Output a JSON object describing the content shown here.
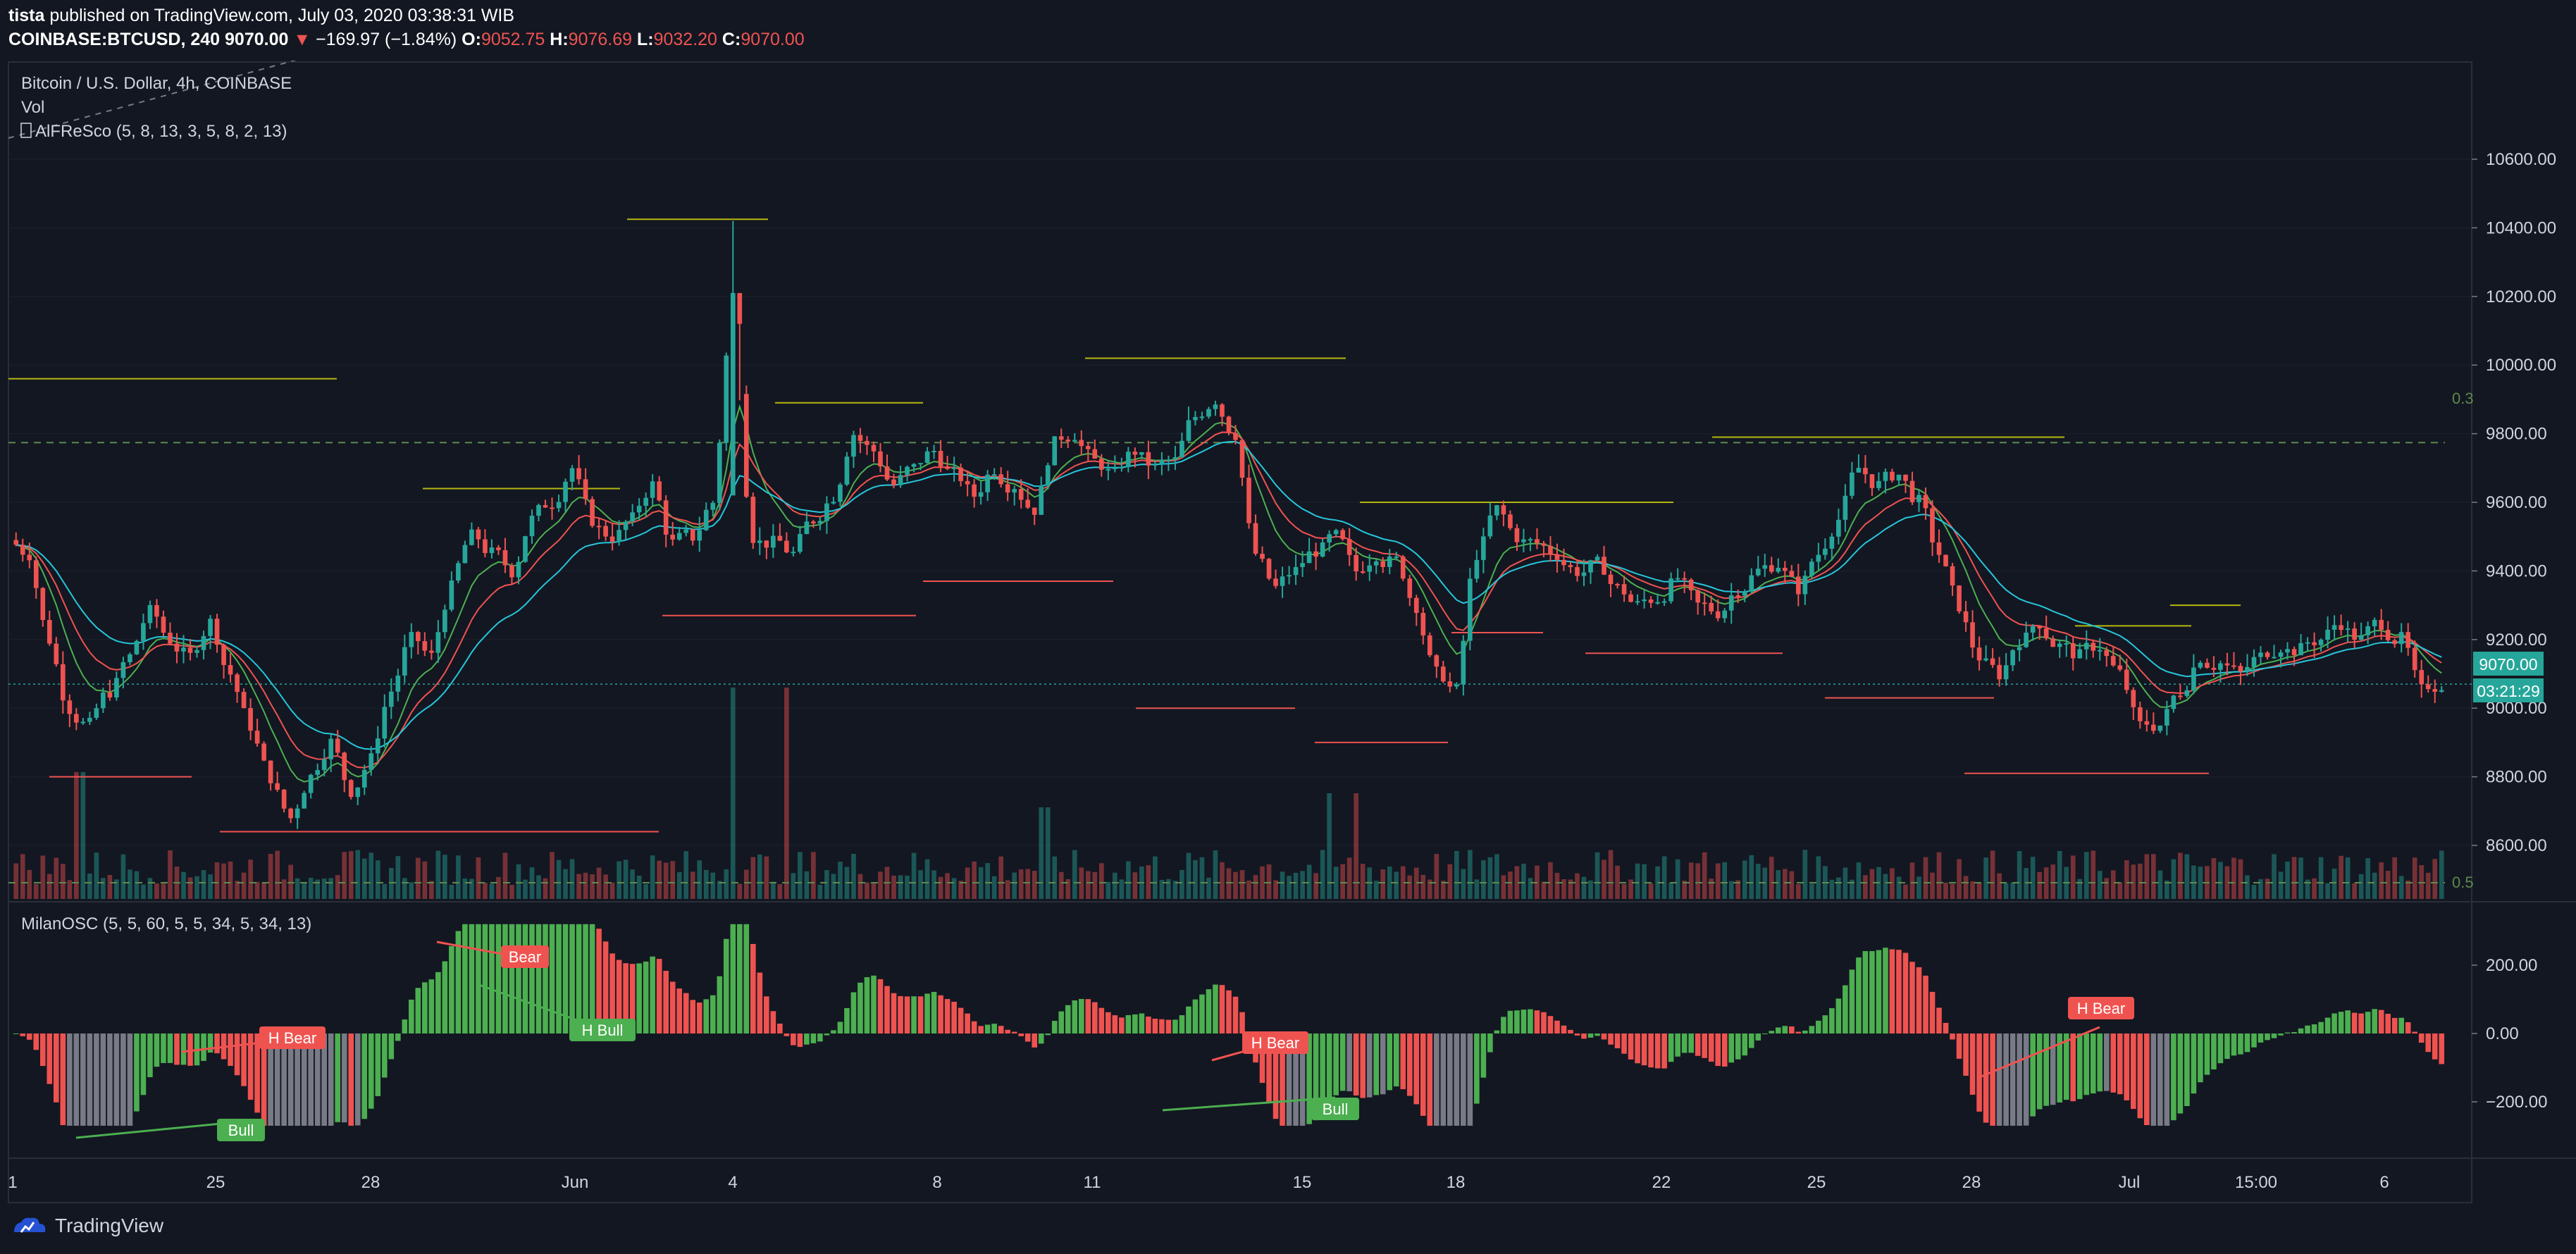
{
  "header": {
    "publisher": "tista",
    "published_text": "published on TradingView.com, July 03, 2020 03:38:31 WIB",
    "symbol": "COINBASE:BTCUSD, 240",
    "last_price": "9070.00",
    "change": "−169.97 (−1.84%)",
    "o_label": "O:",
    "o_value": "9052.75",
    "h_label": "H:",
    "h_value": "9076.69",
    "l_label": "L:",
    "l_value": "9032.20",
    "c_label": "C:",
    "c_value": "9070.00"
  },
  "legend": {
    "title": "Bitcoin / U.S. Dollar, 4h, COINBASE",
    "vol": "Vol",
    "indicator": "AlFReSco (5, 8, 13, 3, 5, 8, 2, 13)",
    "oscillator": "MilanOSC (5, 5, 60, 5, 5, 34, 5, 34, 13)"
  },
  "price_badge": {
    "value": "9070.00",
    "countdown": "03:21:29"
  },
  "fib_labels": {
    "upper": "0.3",
    "lower": "0.5"
  },
  "footer": {
    "brand": "TradingView"
  },
  "colors": {
    "background": "#131722",
    "up": "#26a69a",
    "down": "#ef5350",
    "osc_up": "#4caf50",
    "osc_down": "#ef5350",
    "osc_neutral": "#787b86",
    "ma_fast": "#4caf50",
    "ma_mid": "#ef5350",
    "ma_slow": "#26c6da",
    "level": "#b5b80e",
    "grid": "#1e222d"
  },
  "chart_data": [
    {
      "type": "candlestick",
      "title": "Bitcoin / U.S. Dollar, 4h, COINBASE",
      "ylim": [
        8450,
        10650
      ],
      "y_ticks": [
        8600,
        8800,
        9000,
        9200,
        9400,
        9600,
        9800,
        10000,
        10200,
        10400,
        10600
      ],
      "y_tick_labels": [
        "8600.00",
        "8800.00",
        "9000.00",
        "9200.00",
        "9400.00",
        "9600.00",
        "9800.00",
        "10000.00",
        "10200.00",
        "10400.00",
        "10600.00"
      ],
      "x_tick_labels": [
        "1",
        "25",
        "28",
        "Jun",
        "4",
        "8",
        "11",
        "15",
        "18",
        "22",
        "25",
        "28",
        "Jul",
        "15:00",
        "6"
      ],
      "close_series": [
        9450,
        9200,
        9000,
        8950,
        9050,
        9150,
        9280,
        9200,
        9150,
        9250,
        9100,
        8950,
        8800,
        8680,
        8800,
        8900,
        8760,
        8850,
        9050,
        9200,
        9150,
        9350,
        9500,
        9450,
        9400,
        9550,
        9600,
        9700,
        9550,
        9500,
        9550,
        9650,
        9480,
        9500,
        9600,
        10150,
        9500,
        9480,
        9450,
        9550,
        9620,
        9800,
        9750,
        9650,
        9700,
        9750,
        9680,
        9620,
        9700,
        9650,
        9580,
        9770,
        9800,
        9720,
        9680,
        9750,
        9700,
        9720,
        9850,
        9900,
        9800,
        9450,
        9350,
        9400,
        9460,
        9500,
        9400,
        9450,
        9430,
        9300,
        9100,
        9050,
        9450,
        9580,
        9500,
        9480,
        9450,
        9400,
        9420,
        9350,
        9300,
        9320,
        9380,
        9300,
        9280,
        9350,
        9400,
        9420,
        9350,
        9450,
        9550,
        9700,
        9650,
        9680,
        9600,
        9450,
        9300,
        9150,
        9100,
        9200,
        9250,
        9180,
        9150,
        9180,
        9100,
        8950,
        8950,
        9050,
        9150,
        9130,
        9100,
        9150,
        9180,
        9170,
        9200,
        9250,
        9200,
        9250,
        9200,
        9050,
        9070
      ],
      "high": 10420,
      "low": 8650,
      "last": 9070,
      "horizontal_levels": [
        {
          "value": 9774,
          "label": "0.3"
        },
        {
          "value": 8500,
          "label": "0.5"
        },
        {
          "value": 9070,
          "label": "current price"
        }
      ]
    },
    {
      "type": "bar",
      "name": "Vol",
      "note": "volume histogram colored by candle direction"
    },
    {
      "type": "bar",
      "title": "MilanOSC (5, 5, 60, 5, 5, 34, 5, 34, 13)",
      "ylim": [
        -290,
        350
      ],
      "y_ticks": [
        -200,
        0,
        200
      ],
      "y_tick_labels": [
        "−200.00",
        "0.00",
        "200.00"
      ],
      "annotations": [
        "Bull",
        "H Bear",
        "Bear",
        "H Bull",
        "H Bear",
        "Bull",
        "H Bear"
      ]
    }
  ]
}
